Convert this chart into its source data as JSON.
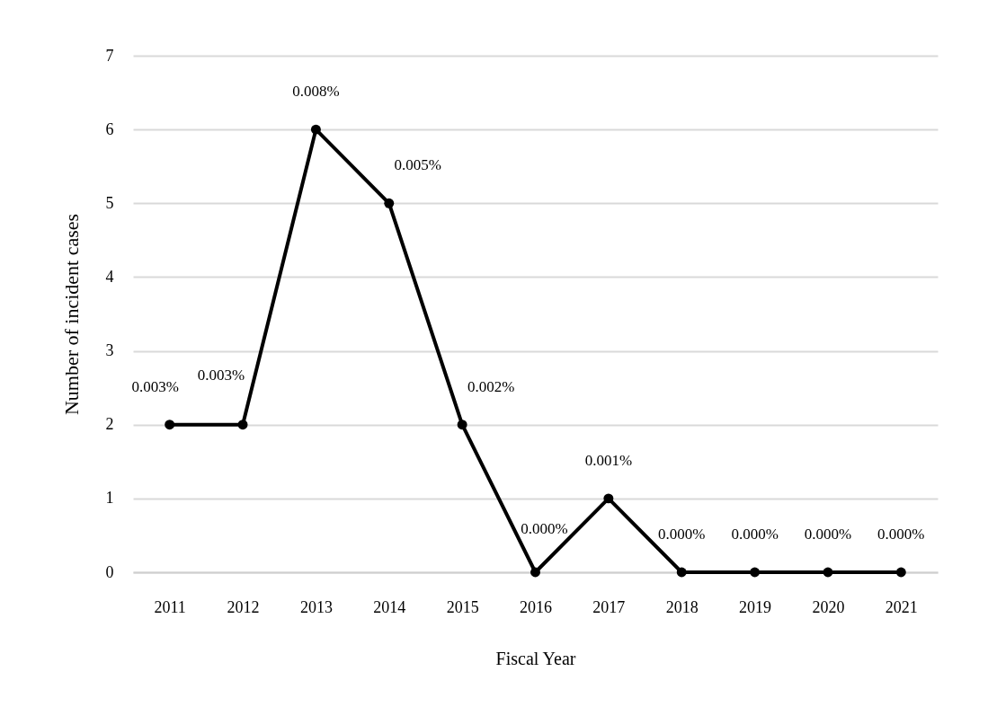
{
  "chart_data": {
    "type": "line",
    "xlabel": "Fiscal Year",
    "ylabel": "Number of incident cases",
    "categories": [
      "2011",
      "2012",
      "2013",
      "2014",
      "2015",
      "2016",
      "2017",
      "2018",
      "2019",
      "2020",
      "2021"
    ],
    "series": [
      {
        "color": "#000000",
        "values": [
          2,
          2,
          6,
          5,
          2,
          0,
          1,
          0,
          0,
          0,
          0
        ]
      }
    ],
    "annotations": [
      {
        "text": "0.003%",
        "x": "2011",
        "y": 2
      },
      {
        "text": "0.003%",
        "x": "2012",
        "y": 2
      },
      {
        "text": "0.008%",
        "x": "2013",
        "y": 6
      },
      {
        "text": "0.005%",
        "x": "2014",
        "y": 5
      },
      {
        "text": "0.002%",
        "x": "2015",
        "y": 2
      },
      {
        "text": "0.000%",
        "x": "2016",
        "y": 0
      },
      {
        "text": "0.001%",
        "x": "2017",
        "y": 1
      },
      {
        "text": "0.000%",
        "x": "2018",
        "y": 0
      },
      {
        "text": "0.000%",
        "x": "2019",
        "y": 0
      },
      {
        "text": "0.000%",
        "x": "2020",
        "y": 0
      },
      {
        "text": "0.000%",
        "x": "2021",
        "y": 0
      }
    ],
    "ylim": [
      0,
      7
    ],
    "yticks": [
      0,
      1,
      2,
      3,
      4,
      5,
      6,
      7
    ],
    "grid": "y",
    "marker": "circle",
    "line_style": "solid"
  }
}
